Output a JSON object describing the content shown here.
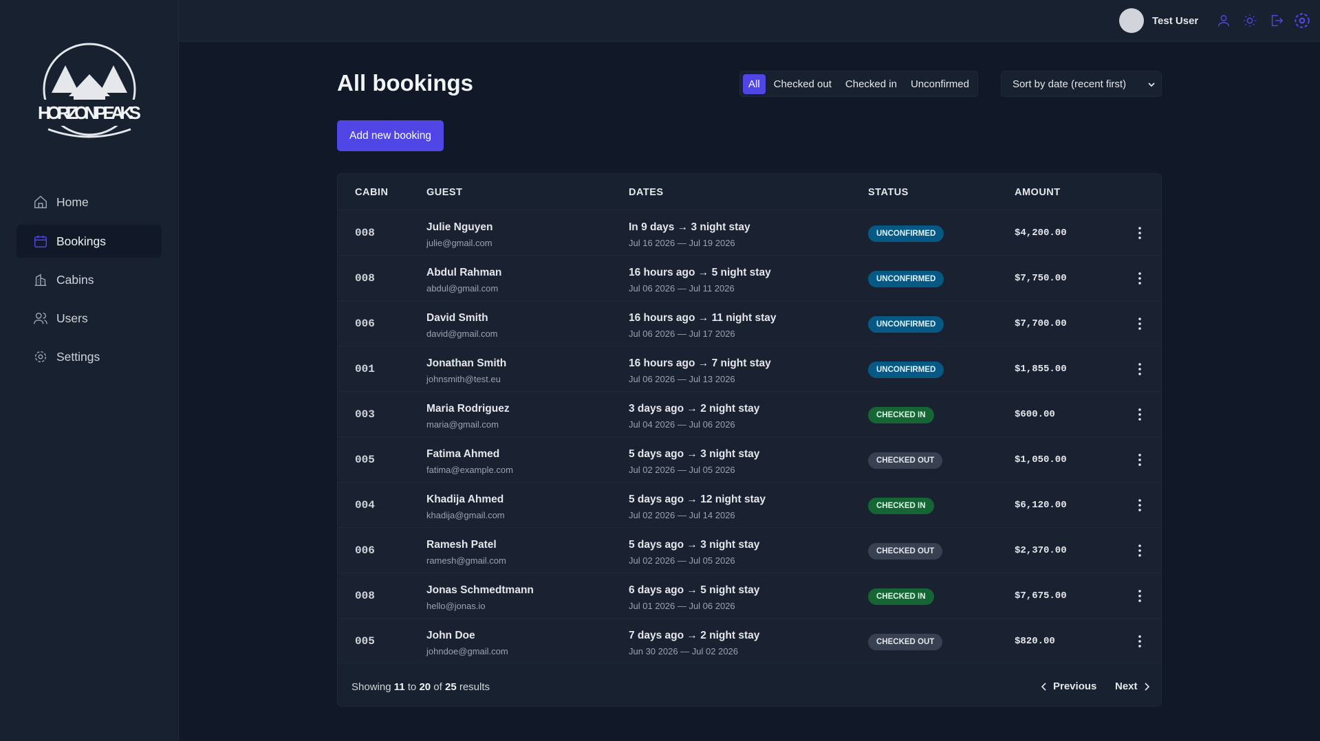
{
  "sidebar": {
    "brand": "HORIZON PEAKS",
    "nav": [
      "Home",
      "Bookings",
      "Cabins",
      "Users",
      "Settings"
    ]
  },
  "header": {
    "user": "Test User"
  },
  "page": {
    "title": "All bookings",
    "filters": [
      "All",
      "Checked out",
      "Checked in",
      "Unconfirmed"
    ],
    "sort": "Sort by date (recent first)",
    "add_button": "Add new booking"
  },
  "table": {
    "columns": [
      "CABIN",
      "GUEST",
      "DATES",
      "STATUS",
      "AMOUNT"
    ],
    "rows": [
      {
        "cabin": "008",
        "guest": "Julie Nguyen",
        "email": "julie@gmail.com",
        "stay": "In 9 days → 3 night stay",
        "dates": "Jul 16 2026 — Jul 19 2026",
        "status": "UNCONFIRMED",
        "amount": "$4,200.00"
      },
      {
        "cabin": "008",
        "guest": "Abdul Rahman",
        "email": "abdul@gmail.com",
        "stay": "16 hours ago → 5 night stay",
        "dates": "Jul 06 2026 — Jul 11 2026",
        "status": "UNCONFIRMED",
        "amount": "$7,750.00"
      },
      {
        "cabin": "006",
        "guest": "David Smith",
        "email": "david@gmail.com",
        "stay": "16 hours ago → 11 night stay",
        "dates": "Jul 06 2026 — Jul 17 2026",
        "status": "UNCONFIRMED",
        "amount": "$7,700.00"
      },
      {
        "cabin": "001",
        "guest": "Jonathan Smith",
        "email": "johnsmith@test.eu",
        "stay": "16 hours ago → 7 night stay",
        "dates": "Jul 06 2026 — Jul 13 2026",
        "status": "UNCONFIRMED",
        "amount": "$1,855.00"
      },
      {
        "cabin": "003",
        "guest": "Maria Rodriguez",
        "email": "maria@gmail.com",
        "stay": "3 days ago → 2 night stay",
        "dates": "Jul 04 2026 — Jul 06 2026",
        "status": "CHECKED IN",
        "amount": "$600.00"
      },
      {
        "cabin": "005",
        "guest": "Fatima Ahmed",
        "email": "fatima@example.com",
        "stay": "5 days ago → 3 night stay",
        "dates": "Jul 02 2026 — Jul 05 2026",
        "status": "CHECKED OUT",
        "amount": "$1,050.00"
      },
      {
        "cabin": "004",
        "guest": "Khadija Ahmed",
        "email": "khadija@gmail.com",
        "stay": "5 days ago → 12 night stay",
        "dates": "Jul 02 2026 — Jul 14 2026",
        "status": "CHECKED IN",
        "amount": "$6,120.00"
      },
      {
        "cabin": "006",
        "guest": "Ramesh Patel",
        "email": "ramesh@gmail.com",
        "stay": "5 days ago → 3 night stay",
        "dates": "Jul 02 2026 — Jul 05 2026",
        "status": "CHECKED OUT",
        "amount": "$2,370.00"
      },
      {
        "cabin": "008",
        "guest": "Jonas Schmedtmann",
        "email": "hello@jonas.io",
        "stay": "6 days ago → 5 night stay",
        "dates": "Jul 01 2026 — Jul 06 2026",
        "status": "CHECKED IN",
        "amount": "$7,675.00"
      },
      {
        "cabin": "005",
        "guest": "John Doe",
        "email": "johndoe@gmail.com",
        "stay": "7 days ago → 2 night stay",
        "dates": "Jun 30 2026 — Jul 02 2026",
        "status": "CHECKED OUT",
        "amount": "$820.00"
      }
    ]
  },
  "pagination": {
    "showing": "Showing",
    "from": "11",
    "to_word": "to",
    "to": "20",
    "of_word": "of",
    "total": "25",
    "results": "results",
    "previous": "Previous",
    "next": "Next"
  }
}
